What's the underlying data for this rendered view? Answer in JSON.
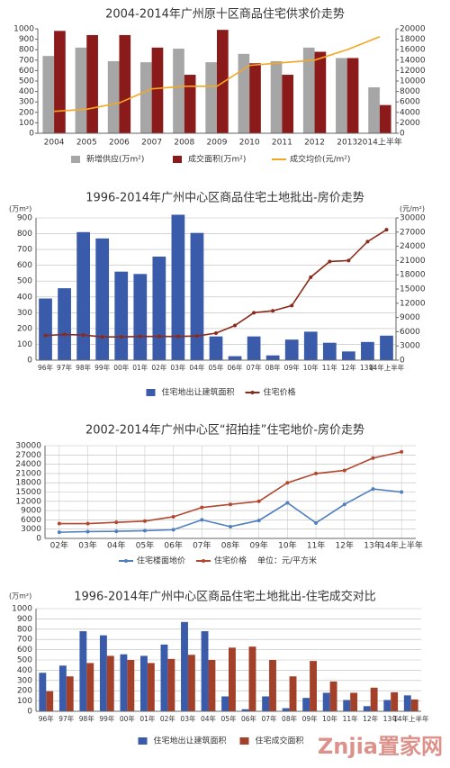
{
  "chart_data": [
    {
      "type": "bar",
      "title": "2004-2014年广州原十区商品住宅供求价走势",
      "categories": [
        "2004",
        "2005",
        "2006",
        "2007",
        "2008",
        "2009",
        "2010",
        "2011",
        "2012",
        "2013",
        "2014上半年"
      ],
      "series": [
        {
          "name": "新增供应(万m²)",
          "color": "#a6a6a6",
          "values": [
            740,
            820,
            690,
            680,
            810,
            680,
            760,
            690,
            820,
            720,
            440
          ]
        },
        {
          "name": "成交面积(万m²)",
          "color": "#8b1a1a",
          "values": [
            980,
            940,
            940,
            820,
            560,
            990,
            670,
            560,
            780,
            720,
            270
          ]
        },
        {
          "name": "成交均价(元/m²)",
          "color": "#f5a623",
          "type": "line",
          "axis": "y2",
          "values": [
            4200,
            4600,
            5800,
            8500,
            9000,
            9000,
            13000,
            13500,
            14000,
            16000,
            18500
          ]
        }
      ],
      "ylim": [
        0,
        1000
      ],
      "yticks": [
        0,
        100,
        200,
        300,
        400,
        500,
        600,
        700,
        800,
        900,
        1000
      ],
      "y2lim": [
        0,
        20000
      ],
      "y2ticks": [
        0,
        2000,
        4000,
        6000,
        8000,
        10000,
        12000,
        14000,
        16000,
        18000,
        20000
      ],
      "grid": false
    },
    {
      "type": "bar",
      "title": "1996-2014年广州中心区商品住宅土地批出-房价走势",
      "ylabel": "(万m²)",
      "y2label": "(元/m²)",
      "categories": [
        "96年",
        "97年",
        "98年",
        "99年",
        "00年",
        "01年",
        "02年",
        "03年",
        "04年",
        "05年",
        "06年",
        "07年",
        "08年",
        "09年",
        "10年",
        "11年",
        "12年",
        "13年",
        "14年上半年"
      ],
      "series": [
        {
          "name": "住宅地出让建筑面积",
          "color": "#3a5ba9",
          "values": [
            390,
            455,
            810,
            770,
            560,
            545,
            655,
            920,
            805,
            150,
            25,
            150,
            30,
            130,
            180,
            110,
            55,
            115,
            155
          ]
        },
        {
          "name": "住宅价格",
          "color": "#8b2a1a",
          "type": "line",
          "axis": "y2",
          "marker": true,
          "values": [
            5200,
            5400,
            5300,
            4900,
            4900,
            5000,
            5000,
            5000,
            5100,
            5700,
            7300,
            10000,
            10400,
            11500,
            17500,
            20800,
            21000,
            25000,
            27500
          ]
        }
      ],
      "ylim": [
        0,
        900
      ],
      "yticks": [
        0,
        100,
        200,
        300,
        400,
        500,
        600,
        700,
        800,
        900
      ],
      "y2lim": [
        0,
        30000
      ],
      "y2ticks": [
        0,
        3000,
        6000,
        9000,
        12000,
        15000,
        18000,
        21000,
        24000,
        27000,
        30000
      ],
      "grid": true
    },
    {
      "type": "line",
      "title": "2002-2014年广州中心区“招拍挂”住宅地价-房价走势",
      "note": "单位：元/平方米",
      "categories": [
        "02年",
        "03年",
        "04年",
        "05年",
        "06年",
        "07年",
        "08年",
        "09年",
        "10年",
        "11年",
        "12年",
        "13年",
        "14年上半年"
      ],
      "series": [
        {
          "name": "住宅楼面地价",
          "color": "#4f7fc0",
          "type": "line",
          "marker": true,
          "values": [
            2000,
            2200,
            2300,
            2500,
            2800,
            6000,
            3800,
            5800,
            11500,
            5000,
            11000,
            16000,
            15000
          ]
        },
        {
          "name": "住宅价格",
          "color": "#b2472f",
          "type": "line",
          "marker": true,
          "values": [
            4800,
            4800,
            5200,
            5600,
            7000,
            10000,
            11000,
            12000,
            18000,
            21000,
            22000,
            26000,
            28000
          ]
        }
      ],
      "ylim": [
        0,
        30000
      ],
      "yticks": [
        0,
        3000,
        6000,
        9000,
        12000,
        15000,
        18000,
        21000,
        24000,
        27000,
        30000
      ],
      "grid": true
    },
    {
      "type": "bar",
      "title": "1996-2014年广州中心区商品住宅土地批出-住宅成交对比",
      "ylabel": "(万m²)",
      "categories": [
        "96年",
        "97年",
        "98年",
        "99年",
        "00年",
        "01年",
        "02年",
        "03年",
        "04年",
        "05年",
        "06年",
        "07年",
        "08年",
        "09年",
        "10年",
        "11年",
        "12年",
        "13年",
        "14年上半年"
      ],
      "series": [
        {
          "name": "住宅地出让建筑面积",
          "color": "#3a5ba9",
          "values": [
            375,
            445,
            780,
            740,
            555,
            540,
            650,
            870,
            780,
            145,
            20,
            145,
            30,
            130,
            180,
            110,
            50,
            110,
            155
          ]
        },
        {
          "name": "住宅成交面积",
          "color": "#a3402a",
          "values": [
            195,
            340,
            470,
            540,
            500,
            470,
            510,
            550,
            500,
            620,
            630,
            500,
            340,
            490,
            290,
            180,
            230,
            185,
            115
          ]
        }
      ],
      "ylim": [
        0,
        1000
      ],
      "yticks": [
        0,
        100,
        200,
        300,
        400,
        500,
        600,
        700,
        800,
        900,
        1000
      ],
      "grid": true
    }
  ],
  "watermark": "Znjia置家网"
}
